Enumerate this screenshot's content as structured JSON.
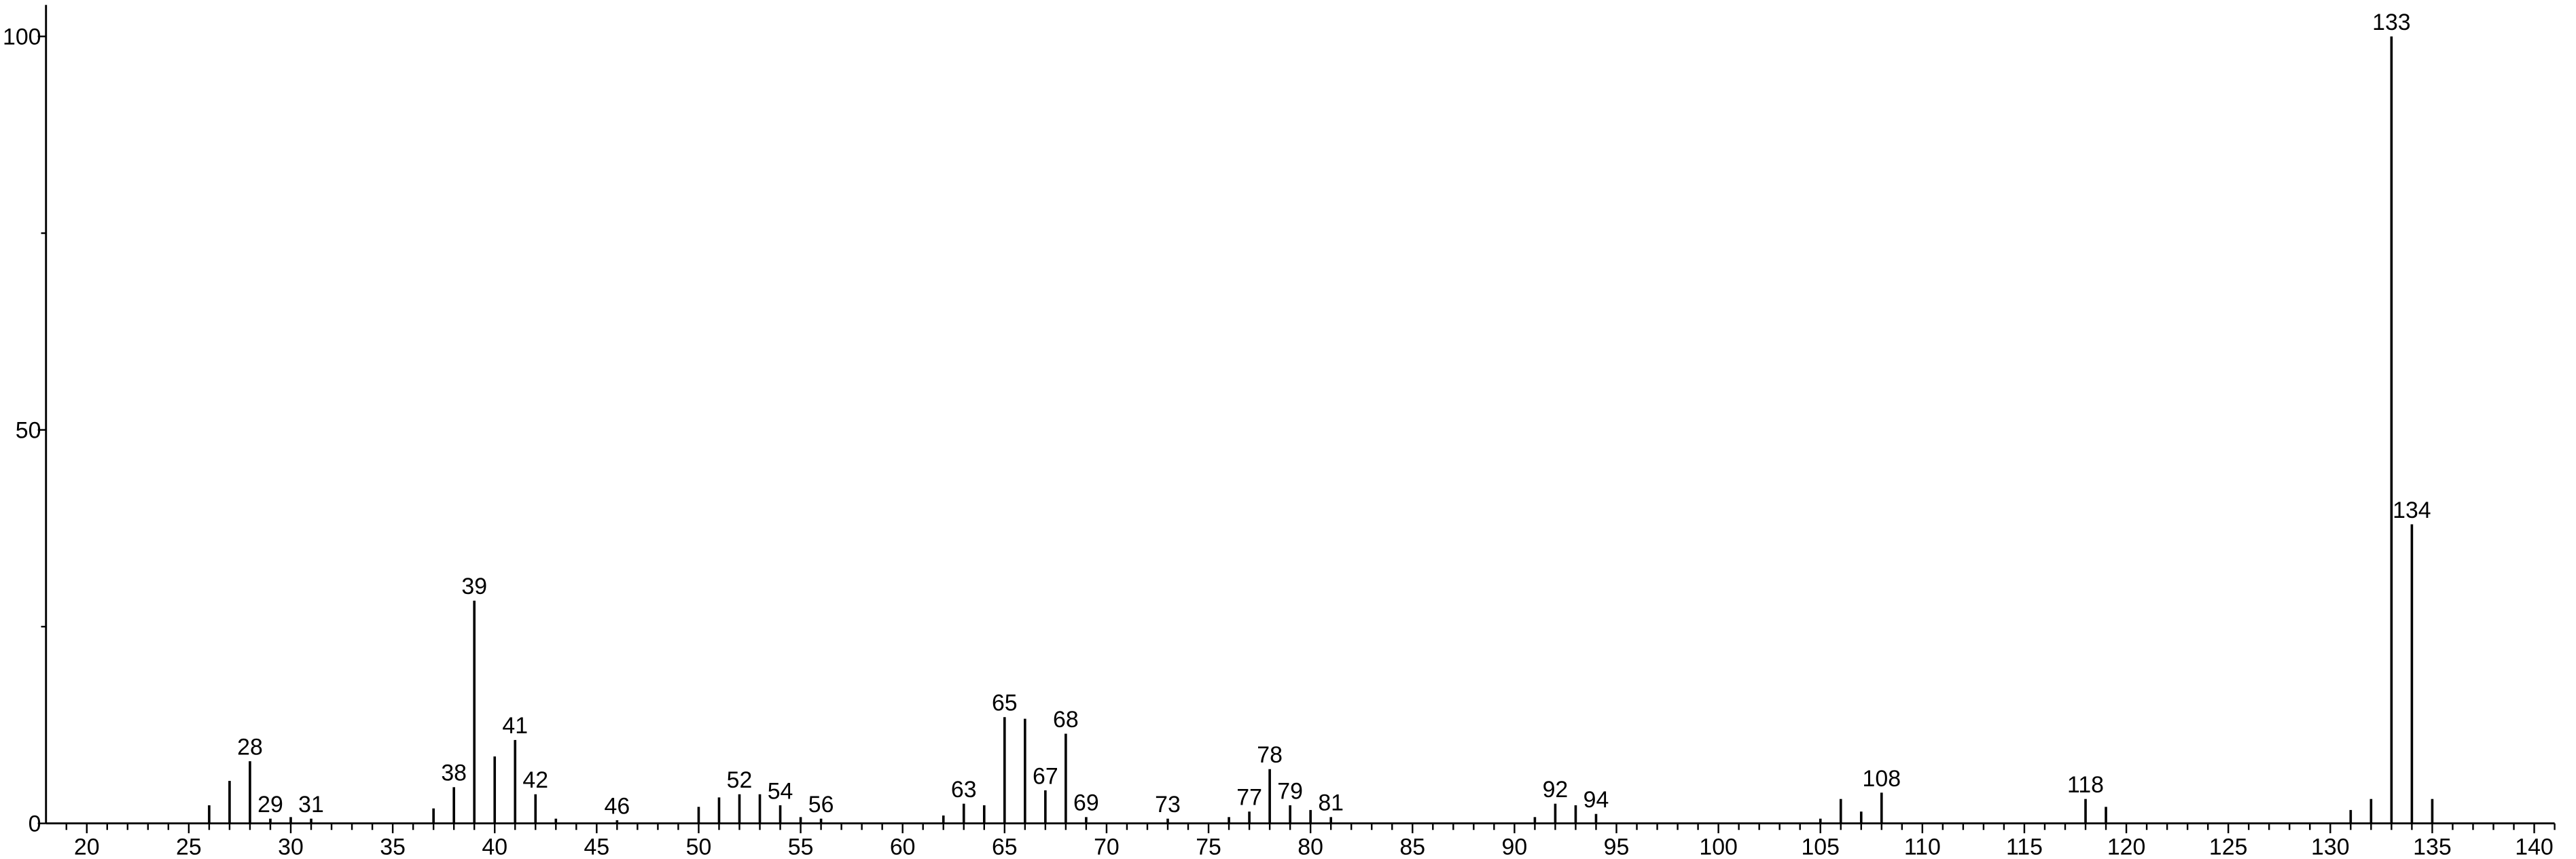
{
  "chart_data": {
    "type": "stem",
    "x": [
      26,
      27,
      28,
      29,
      30,
      31,
      37,
      38,
      39,
      40,
      41,
      42,
      43,
      46,
      50,
      51,
      52,
      53,
      54,
      55,
      56,
      62,
      63,
      64,
      65,
      66,
      67,
      68,
      69,
      73,
      76,
      77,
      78,
      79,
      80,
      81,
      91,
      92,
      93,
      94,
      105,
      106,
      107,
      108,
      118,
      119,
      131,
      132,
      133,
      134,
      135
    ],
    "values": [
      2.3,
      5.4,
      7.9,
      0.6,
      0.8,
      0.6,
      1.9,
      4.6,
      28.3,
      8.5,
      10.6,
      3.7,
      0.6,
      0.4,
      2.1,
      3.3,
      3.7,
      3.7,
      2.3,
      0.8,
      0.6,
      1.0,
      2.5,
      2.3,
      13.5,
      13.3,
      4.2,
      11.4,
      0.8,
      0.6,
      0.8,
      1.5,
      6.9,
      2.3,
      1.7,
      0.8,
      0.8,
      2.5,
      2.3,
      1.2,
      0.6,
      3.1,
      1.5,
      3.9,
      3.1,
      2.1,
      1.7,
      3.1,
      100,
      38,
      3.1
    ],
    "show_label": [
      false,
      false,
      true,
      true,
      false,
      true,
      false,
      true,
      true,
      false,
      true,
      true,
      false,
      true,
      false,
      false,
      true,
      false,
      true,
      false,
      true,
      false,
      true,
      false,
      true,
      false,
      true,
      true,
      true,
      true,
      false,
      true,
      true,
      true,
      false,
      true,
      false,
      true,
      false,
      true,
      false,
      false,
      false,
      true,
      true,
      false,
      false,
      false,
      true,
      true,
      false
    ],
    "color": "#000000",
    "xlim": [
      18,
      141
    ],
    "xticks": [
      20,
      25,
      30,
      35,
      40,
      45,
      50,
      55,
      60,
      65,
      70,
      75,
      80,
      85,
      90,
      95,
      100,
      105,
      110,
      115,
      120,
      125,
      130,
      135,
      140
    ],
    "xminorticks": [
      19,
      21,
      22,
      23,
      24,
      26,
      27,
      28,
      29,
      31,
      32,
      33,
      34,
      36,
      37,
      38,
      39,
      41,
      42,
      43,
      44,
      46,
      47,
      48,
      49,
      51,
      52,
      53,
      54,
      56,
      57,
      58,
      59,
      61,
      62,
      63,
      64,
      66,
      67,
      68,
      69,
      71,
      72,
      73,
      74,
      76,
      77,
      78,
      79,
      81,
      82,
      83,
      84,
      86,
      87,
      88,
      89,
      91,
      92,
      93,
      94,
      96,
      97,
      98,
      99,
      101,
      102,
      103,
      104,
      106,
      107,
      108,
      109,
      111,
      112,
      113,
      114,
      116,
      117,
      118,
      119,
      121,
      122,
      123,
      124,
      126,
      127,
      128,
      129,
      131,
      132,
      133,
      134,
      136,
      137,
      138,
      139,
      141
    ],
    "ylim": [
      0,
      104
    ],
    "yticks": [
      0,
      50,
      100
    ],
    "yminorticks": [
      25,
      75
    ]
  }
}
